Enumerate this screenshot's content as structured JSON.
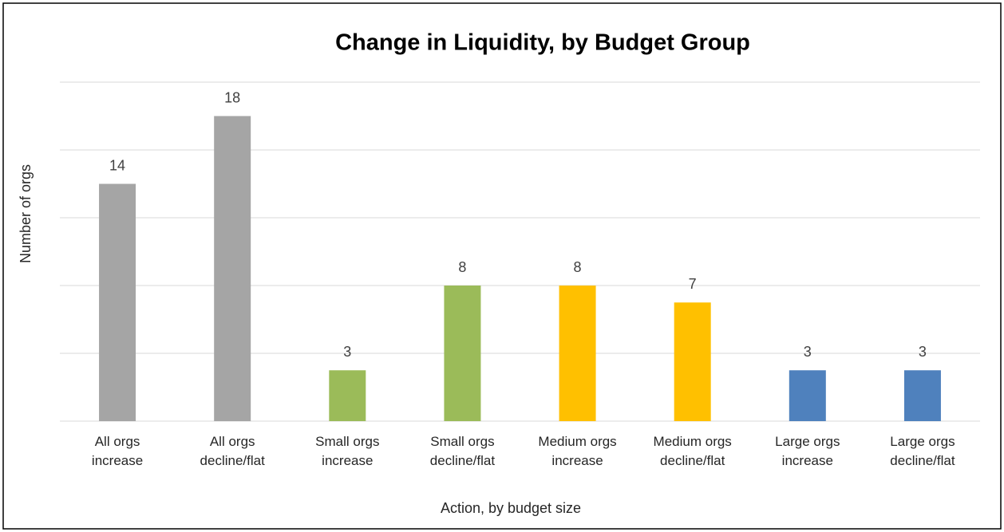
{
  "chart_data": {
    "type": "bar",
    "title": "Change in Liquidity, by Budget Group",
    "x_label": "Action, by budget size",
    "y_label": "Number of orgs",
    "categories": [
      "All orgs\nincrease",
      "All orgs\ndecline/flat",
      "Small orgs\nincrease",
      "Small orgs\ndecline/flat",
      "Medium orgs\nincrease",
      "Medium orgs\ndecline/flat",
      "Large orgs\nincrease",
      "Large orgs\ndecline/flat"
    ],
    "values": [
      14,
      18,
      3,
      8,
      8,
      7,
      3,
      3
    ],
    "colors": [
      "#a5a5a5",
      "#a5a5a5",
      "#9bbb59",
      "#9bbb59",
      "#ffc000",
      "#ffc000",
      "#4f81bd",
      "#4f81bd"
    ],
    "ylim": [
      0,
      20
    ],
    "yticks": [
      0,
      4,
      8,
      12,
      16,
      20
    ],
    "grid": true
  }
}
